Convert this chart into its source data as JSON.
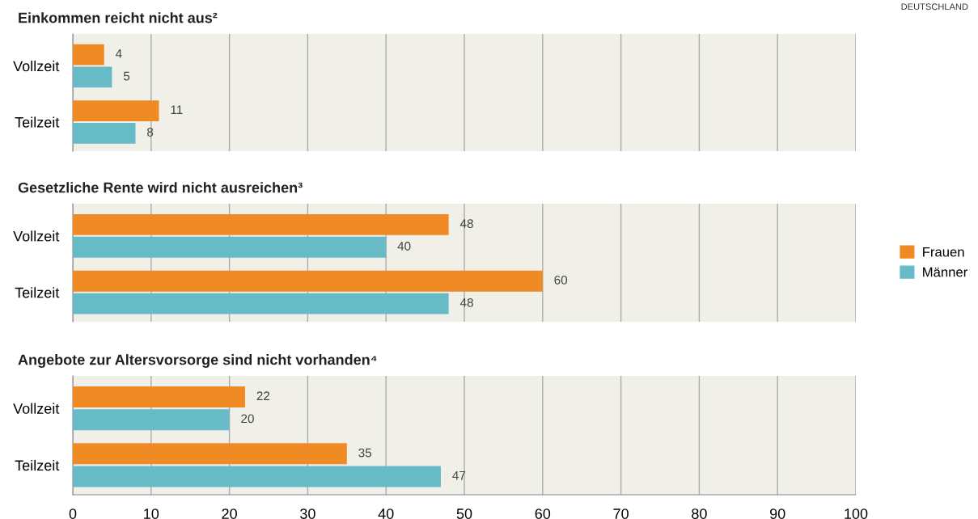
{
  "chart_data": [
    {
      "type": "bar",
      "orientation": "horizontal",
      "title": "Einkommen reicht nicht aus²",
      "categories": [
        "Vollzeit",
        "Teilzeit"
      ],
      "series": [
        {
          "color": "#f08a24",
          "values": [
            4,
            11
          ]
        },
        {
          "color": "#66bbc6",
          "values": [
            5,
            8
          ]
        }
      ],
      "xlim": [
        0,
        100
      ],
      "xticks": [
        0,
        10,
        20,
        30,
        40,
        50,
        60,
        70,
        80,
        90,
        100
      ],
      "grid": "x",
      "data_labels": true,
      "tick_labels": "y",
      "annotations": [
        "DEUTSCHLAND"
      ]
    },
    {
      "type": "bar",
      "orientation": "horizontal",
      "title": "Gesetzliche Rente wird nicht ausreichen³",
      "categories": [
        "Vollzeit",
        "Teilzeit"
      ],
      "series": [
        {
          "name": "Frauen",
          "color": "#f08a24",
          "values": [
            48,
            60
          ]
        },
        {
          "name": "Männer",
          "color": "#66bbc6",
          "values": [
            40,
            48
          ]
        }
      ],
      "xlim": [
        0,
        100
      ],
      "xticks": [
        0,
        10,
        20,
        30,
        40,
        50,
        60,
        70,
        80,
        90,
        100
      ],
      "grid": "x",
      "data_labels": true,
      "tick_labels": "y",
      "legend": "right"
    },
    {
      "type": "bar",
      "orientation": "horizontal",
      "title": "Angebote zur Altersvorsorge sind nicht vorhanden⁴",
      "categories": [
        "Vollzeit",
        "Teilzeit"
      ],
      "series": [
        {
          "color": "#f08a24",
          "values": [
            22,
            35
          ]
        },
        {
          "color": "#66bbc6",
          "values": [
            20,
            47
          ]
        }
      ],
      "xlim": [
        0,
        100
      ],
      "xticks": [
        0,
        10,
        20,
        30,
        40,
        50,
        60,
        70,
        80,
        90,
        100
      ],
      "grid": "x",
      "data_labels": true
    }
  ]
}
